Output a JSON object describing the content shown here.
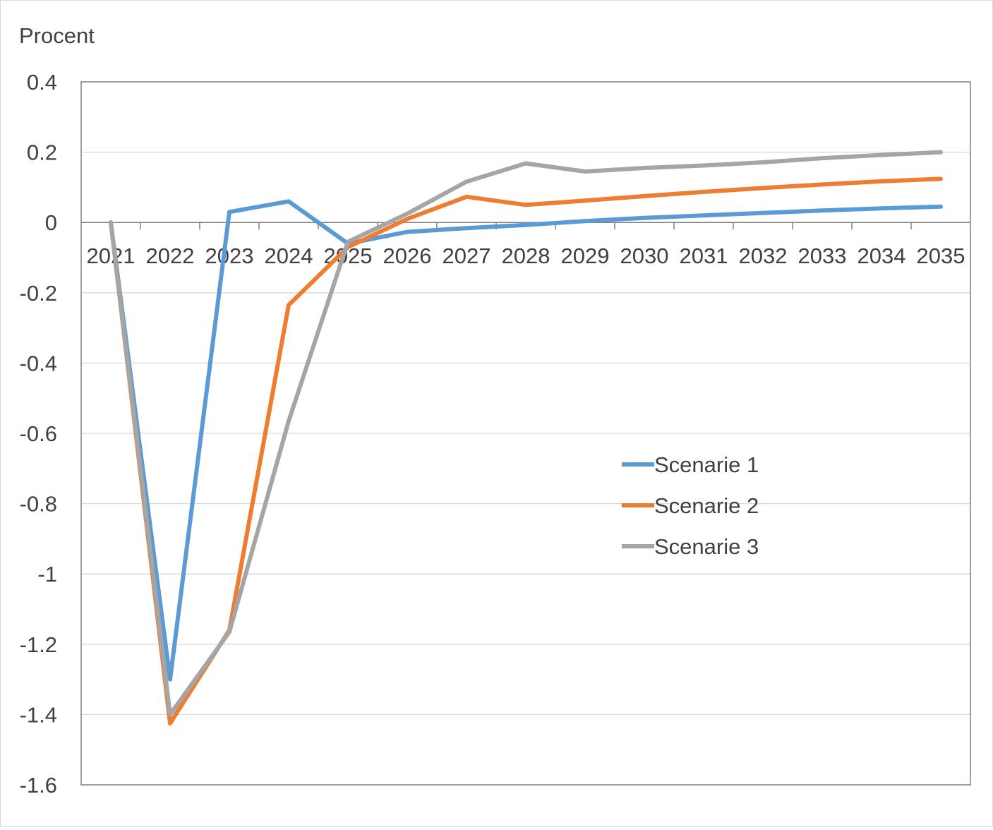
{
  "chart_data": {
    "type": "line",
    "title": "",
    "ylabel": "Procent",
    "xlabel": "",
    "categories": [
      "2021",
      "2022",
      "2023",
      "2024",
      "2025",
      "2026",
      "2027",
      "2028",
      "2029",
      "2030",
      "2031",
      "2032",
      "2033",
      "2034",
      "2035"
    ],
    "ylim": [
      -1.6,
      0.4
    ],
    "yticks": [
      0.4,
      0.2,
      0,
      -0.2,
      -0.4,
      -0.6,
      -0.8,
      -1,
      -1.2,
      -1.4,
      -1.6
    ],
    "ytick_labels": [
      "0.4",
      "0.2",
      "0",
      "-0.2",
      "-0.4",
      "-0.6",
      "-0.8",
      "-1",
      "-1.2",
      "-1.4",
      "-1.6"
    ],
    "grid": true,
    "legend_position": "right",
    "series": [
      {
        "name": "Scenarie 1",
        "color": "#5b9bd5",
        "values": [
          0,
          -1.3,
          0.03,
          0.06,
          -0.06,
          -0.027,
          -0.016,
          -0.007,
          0.004,
          0.013,
          0.02,
          0.027,
          0.034,
          0.04,
          0.045
        ]
      },
      {
        "name": "Scenarie 2",
        "color": "#ed7d31",
        "values": [
          0,
          -1.425,
          -1.16,
          -0.235,
          -0.07,
          0.01,
          0.073,
          0.05,
          0.062,
          0.075,
          0.087,
          0.098,
          0.108,
          0.117,
          0.124
        ]
      },
      {
        "name": "Scenarie 3",
        "color": "#a5a5a5",
        "values": [
          0,
          -1.4,
          -1.165,
          -0.565,
          -0.055,
          0.025,
          0.116,
          0.168,
          0.145,
          0.155,
          0.162,
          0.171,
          0.183,
          0.192,
          0.2
        ]
      }
    ]
  }
}
